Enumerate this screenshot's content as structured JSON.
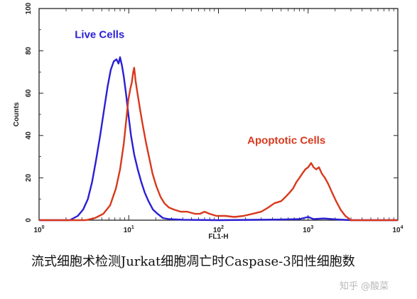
{
  "chart_data": {
    "type": "line",
    "x_scale": "log",
    "xlim": [
      1,
      10000
    ],
    "ylim": [
      0,
      100
    ],
    "xlabel": "FL1-H",
    "ylabel": "Counts",
    "x_ticks": [
      {
        "value": 1,
        "base": "10",
        "exp": "0"
      },
      {
        "value": 10,
        "base": "10",
        "exp": "1"
      },
      {
        "value": 100,
        "base": "10",
        "exp": "2"
      },
      {
        "value": 1000,
        "base": "10",
        "exp": "3"
      },
      {
        "value": 10000,
        "base": "10",
        "exp": "4"
      }
    ],
    "y_ticks": [
      "0",
      "20",
      "40",
      "60",
      "80",
      "100"
    ],
    "grid": false,
    "series": [
      {
        "name": "Live Cells",
        "color": "#2a1fd6",
        "points": [
          [
            1,
            0
          ],
          [
            2.2,
            0
          ],
          [
            2.7,
            2
          ],
          [
            3.1,
            5
          ],
          [
            3.5,
            10
          ],
          [
            3.9,
            18
          ],
          [
            4.3,
            28
          ],
          [
            4.8,
            40
          ],
          [
            5.3,
            52
          ],
          [
            5.8,
            63
          ],
          [
            6.3,
            71
          ],
          [
            6.8,
            75
          ],
          [
            7.3,
            76
          ],
          [
            7.7,
            74
          ],
          [
            8.0,
            77
          ],
          [
            8.4,
            73
          ],
          [
            8.8,
            68
          ],
          [
            9.3,
            60
          ],
          [
            9.9,
            50
          ],
          [
            10.6,
            40
          ],
          [
            11.5,
            31
          ],
          [
            12.6,
            24
          ],
          [
            13.8,
            18
          ],
          [
            15.1,
            13
          ],
          [
            16.6,
            9
          ],
          [
            18.6,
            5
          ],
          [
            21,
            3
          ],
          [
            24,
            1
          ],
          [
            28,
            0.5
          ],
          [
            40,
            0.2
          ],
          [
            100,
            0
          ],
          [
            500,
            0.3
          ],
          [
            800,
            0.5
          ],
          [
            1000,
            1.5
          ],
          [
            1150,
            0.5
          ],
          [
            1500,
            0.8
          ],
          [
            2000,
            0.4
          ],
          [
            3000,
            0
          ],
          [
            10000,
            0
          ]
        ]
      },
      {
        "name": "Apoptotic Cells",
        "color": "#d8391d",
        "points": [
          [
            1,
            0
          ],
          [
            3.3,
            0
          ],
          [
            4.2,
            1
          ],
          [
            5.2,
            3
          ],
          [
            6.2,
            7
          ],
          [
            7.2,
            15
          ],
          [
            8.0,
            24
          ],
          [
            8.8,
            36
          ],
          [
            9.4,
            48
          ],
          [
            9.9,
            57
          ],
          [
            10.4,
            62
          ],
          [
            10.8,
            65
          ],
          [
            11.2,
            70
          ],
          [
            11.5,
            72
          ],
          [
            11.9,
            66
          ],
          [
            12.5,
            60
          ],
          [
            13.4,
            52
          ],
          [
            14.3,
            45
          ],
          [
            15.5,
            37
          ],
          [
            16.8,
            30
          ],
          [
            18.4,
            22
          ],
          [
            20.3,
            16
          ],
          [
            22.6,
            11
          ],
          [
            25,
            8
          ],
          [
            28,
            6
          ],
          [
            32,
            5
          ],
          [
            38,
            4
          ],
          [
            45,
            4
          ],
          [
            55,
            3
          ],
          [
            62,
            3
          ],
          [
            70,
            4
          ],
          [
            80,
            3
          ],
          [
            95,
            2
          ],
          [
            120,
            2
          ],
          [
            150,
            1.5
          ],
          [
            190,
            2
          ],
          [
            240,
            3
          ],
          [
            300,
            4
          ],
          [
            360,
            6
          ],
          [
            420,
            8
          ],
          [
            500,
            9
          ],
          [
            560,
            11
          ],
          [
            620,
            13
          ],
          [
            680,
            15
          ],
          [
            740,
            18
          ],
          [
            800,
            20
          ],
          [
            860,
            22
          ],
          [
            930,
            24
          ],
          [
            1000,
            25
          ],
          [
            1080,
            27
          ],
          [
            1150,
            25
          ],
          [
            1230,
            24
          ],
          [
            1320,
            25
          ],
          [
            1420,
            22
          ],
          [
            1540,
            20
          ],
          [
            1680,
            17
          ],
          [
            1850,
            13
          ],
          [
            2050,
            9
          ],
          [
            2300,
            5
          ],
          [
            2600,
            2
          ],
          [
            3000,
            0
          ],
          [
            10000,
            0
          ]
        ]
      }
    ]
  },
  "caption": "流式细胞术检测Jurkat细胞凋亡时Caspase-3阳性细胞数",
  "watermark": "知乎 @酸菜"
}
